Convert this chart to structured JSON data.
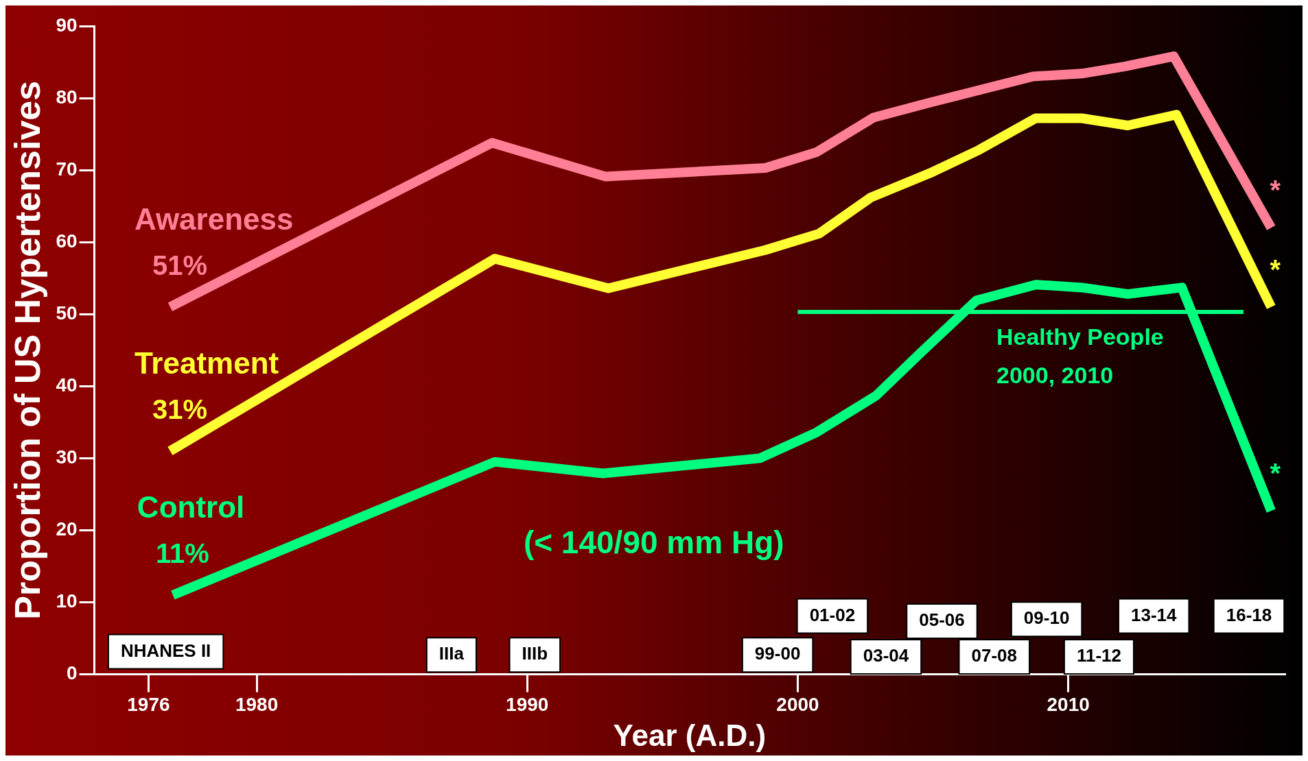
{
  "chart_data": {
    "type": "line",
    "xlabel": "Year (A.D.)",
    "ylabel": "Proportion of US Hypertensives",
    "xlim": [
      1974,
      2018
    ],
    "xticks": [
      1976,
      1980,
      1990,
      2000,
      2010
    ],
    "ylim": [
      0,
      90
    ],
    "yticks": [
      0,
      10,
      20,
      30,
      40,
      50,
      60,
      70,
      80,
      90
    ],
    "grid": false,
    "legend": false,
    "marker": "none",
    "line_style": "solid",
    "series": [
      {
        "name": "Awareness",
        "color": "#ff8096",
        "x": [
          1976.8,
          1988.7,
          1992.9,
          1998.8,
          2000.7,
          2002.8,
          2004.8,
          2008.7,
          2010.5,
          2012.1,
          2013.9,
          2017.5
        ],
        "values": [
          51,
          73.8,
          69.1,
          70.3,
          72.5,
          77.3,
          79.3,
          83,
          83.4,
          84.4,
          85.8,
          62
        ],
        "value_labels": [
          "51%",
          null,
          null,
          null,
          null,
          null,
          null,
          null,
          null,
          null,
          null,
          "*"
        ]
      },
      {
        "name": "Treatment",
        "color": "#ffff33",
        "x": [
          1976.8,
          1988.8,
          1993,
          1998.8,
          2000.8,
          2002.7,
          2004.9,
          2006.7,
          2008.8,
          2010.5,
          2012.2,
          2014,
          2017.5
        ],
        "values": [
          31,
          57.7,
          53.6,
          58.9,
          61.2,
          66.2,
          69.6,
          72.8,
          77.2,
          77.2,
          76.2,
          77.7,
          51
        ],
        "value_labels": [
          "31%",
          null,
          null,
          null,
          null,
          null,
          null,
          null,
          null,
          null,
          null,
          null,
          "*"
        ]
      },
      {
        "name": "Control",
        "color": "#00ff7f",
        "x": [
          1976.9,
          1988.8,
          1992.8,
          1998.6,
          2000.7,
          2002.9,
          2004.7,
          2006.6,
          2008.8,
          2010.5,
          2012.2,
          2014.2,
          2017.5
        ],
        "values": [
          11,
          29.5,
          27.9,
          30,
          33.6,
          38.7,
          45.2,
          51.9,
          54.1,
          53.7,
          52.8,
          53.7,
          22.7
        ],
        "value_labels": [
          "11%",
          null,
          null,
          null,
          null,
          null,
          null,
          null,
          null,
          null,
          null,
          null,
          "*"
        ]
      }
    ],
    "ref_lines": [
      {
        "axis": "y",
        "value": 50.3,
        "label": "Healthy People 2000, 2010",
        "color": "#00ff7f"
      }
    ],
    "annotations": [
      "(< 140/90 mm Hg)",
      "NHANES II",
      "IIIa",
      "IIIb",
      "99-00",
      "01-02",
      "03-04",
      "05-06",
      "07-08",
      "09-10",
      "11-12",
      "13-14",
      "16-18"
    ]
  }
}
